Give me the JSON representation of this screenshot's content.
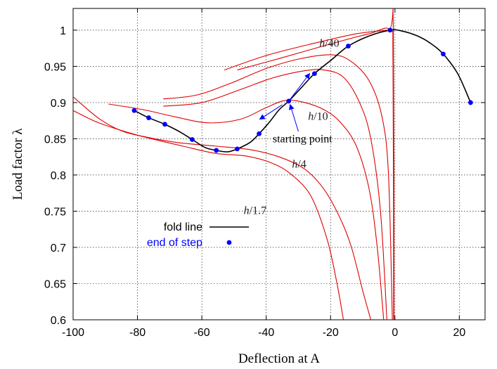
{
  "colors": {
    "fold_line": "#000000",
    "end_of_step": "#0000ff",
    "equilibrium_paths": "#e00000",
    "arrow": "#0000ff",
    "grid": "#000000"
  },
  "chart_data": {
    "type": "line",
    "title": "",
    "xlabel": "Deflection at A",
    "ylabel": "Load factor λ",
    "xlim": [
      -100,
      28
    ],
    "ylim": [
      0.6,
      1.03
    ],
    "xticks": [
      -100,
      -80,
      -60,
      -40,
      -20,
      0,
      20
    ],
    "yticks": [
      0.6,
      0.65,
      0.7,
      0.75,
      0.8,
      0.85,
      0.9,
      0.95,
      1.0
    ],
    "xtick_labels": [
      "-100",
      "-80",
      "-60",
      "-40",
      "-20",
      "0",
      "20"
    ],
    "ytick_labels": [
      "0.6",
      "0.65",
      "0.7",
      "0.75",
      "0.8",
      "0.85",
      "0.9",
      "0.95",
      "1"
    ],
    "grid": true,
    "legend_position": "lower-left",
    "legend": [
      {
        "label": "fold line",
        "style": "line"
      },
      {
        "label": "end of step",
        "style": "point"
      }
    ],
    "series": [
      {
        "name": "fold line",
        "style": "line",
        "points": [
          [
            -81,
            0.889
          ],
          [
            -76.5,
            0.879
          ],
          [
            -71.5,
            0.87
          ],
          [
            -67,
            0.86
          ],
          [
            -63,
            0.849
          ],
          [
            -59,
            0.838
          ],
          [
            -55.5,
            0.834
          ],
          [
            -52,
            0.832
          ],
          [
            -49,
            0.836
          ],
          [
            -45,
            0.845
          ],
          [
            -42.2,
            0.857
          ],
          [
            -39,
            0.873
          ],
          [
            -36,
            0.89
          ],
          [
            -33,
            0.902
          ],
          [
            -29,
            0.921
          ],
          [
            -25,
            0.94
          ],
          [
            -20,
            0.958
          ],
          [
            -14.5,
            0.978
          ],
          [
            -8,
            0.992
          ],
          [
            -1.5,
            1.0
          ],
          [
            2,
            0.999
          ],
          [
            7,
            0.992
          ],
          [
            11,
            0.982
          ],
          [
            15,
            0.967
          ],
          [
            19.5,
            0.94
          ],
          [
            23.5,
            0.9
          ]
        ]
      },
      {
        "name": "end of step",
        "style": "points",
        "points": [
          [
            -81,
            0.889
          ],
          [
            -76.5,
            0.879
          ],
          [
            -71.5,
            0.87
          ],
          [
            -63,
            0.849
          ],
          [
            -55.5,
            0.834
          ],
          [
            -49,
            0.836
          ],
          [
            -42.2,
            0.857
          ],
          [
            -33,
            0.902
          ],
          [
            -25,
            0.94
          ],
          [
            -14.5,
            0.978
          ],
          [
            -1.5,
            1.0
          ],
          [
            15,
            0.967
          ],
          [
            23.5,
            0.9
          ]
        ]
      },
      {
        "name": "h/40 upper",
        "style": "red",
        "points": [
          [
            -53,
            0.945
          ],
          [
            -40,
            0.965
          ],
          [
            -25,
            0.982
          ],
          [
            -12,
            0.995
          ],
          [
            -2,
            1.0
          ],
          [
            -0.5,
            1.0
          ],
          [
            -0.3,
            0.6
          ]
        ]
      },
      {
        "name": "h/40 lower",
        "style": "red",
        "points": [
          [
            -49,
            0.945
          ],
          [
            -35,
            0.962
          ],
          [
            -20,
            0.981
          ],
          [
            -8,
            0.995
          ],
          [
            -1.5,
            1.0
          ],
          [
            -0.6,
            0.95
          ],
          [
            -0.4,
            0.6
          ]
        ]
      },
      {
        "name": "h/10 upper",
        "style": "red",
        "points": [
          [
            -72,
            0.905
          ],
          [
            -62,
            0.91
          ],
          [
            -52,
            0.925
          ],
          [
            -40,
            0.947
          ],
          [
            -30,
            0.96
          ],
          [
            -20,
            0.966
          ],
          [
            -14,
            0.958
          ],
          [
            -8,
            0.93
          ],
          [
            -4,
            0.88
          ],
          [
            -2,
            0.8
          ],
          [
            -0.8,
            0.6
          ]
        ]
      },
      {
        "name": "h/10 lower",
        "style": "red",
        "points": [
          [
            -72,
            0.895
          ],
          [
            -60,
            0.9
          ],
          [
            -48,
            0.918
          ],
          [
            -38,
            0.934
          ],
          [
            -28,
            0.944
          ],
          [
            -22,
            0.945
          ],
          [
            -16,
            0.935
          ],
          [
            -11,
            0.9
          ],
          [
            -7.5,
            0.85
          ],
          [
            -4.5,
            0.75
          ],
          [
            -2.5,
            0.6
          ]
        ]
      },
      {
        "name": "h/4",
        "style": "red",
        "points": [
          [
            -89,
            0.898
          ],
          [
            -78,
            0.89
          ],
          [
            -68,
            0.88
          ],
          [
            -58,
            0.872
          ],
          [
            -48,
            0.877
          ],
          [
            -40,
            0.893
          ],
          [
            -34,
            0.903
          ],
          [
            -28,
            0.9
          ],
          [
            -22,
            0.89
          ],
          [
            -17,
            0.873
          ],
          [
            -12,
            0.84
          ],
          [
            -8,
            0.78
          ],
          [
            -5.5,
            0.7
          ],
          [
            -3.5,
            0.6
          ]
        ]
      },
      {
        "name": "h/1.7",
        "style": "red",
        "points": [
          [
            -100,
            0.908
          ],
          [
            -92,
            0.878
          ],
          [
            -85,
            0.861
          ],
          [
            -78,
            0.853
          ],
          [
            -68,
            0.845
          ],
          [
            -56,
            0.84
          ],
          [
            -45,
            0.835
          ],
          [
            -36,
            0.825
          ],
          [
            -28,
            0.808
          ],
          [
            -22,
            0.78
          ],
          [
            -17,
            0.74
          ],
          [
            -13.5,
            0.7
          ],
          [
            -10,
            0.64
          ],
          [
            -7.5,
            0.6
          ]
        ]
      },
      {
        "name": "h/1.7 outer",
        "style": "red",
        "points": [
          [
            -100,
            0.889
          ],
          [
            -92,
            0.872
          ],
          [
            -80,
            0.855
          ],
          [
            -66,
            0.84
          ],
          [
            -56,
            0.83
          ],
          [
            -46,
            0.826
          ],
          [
            -38,
            0.816
          ],
          [
            -32,
            0.8
          ],
          [
            -26,
            0.77
          ],
          [
            -21,
            0.71
          ],
          [
            -18,
            0.65
          ],
          [
            -16,
            0.6
          ]
        ]
      }
    ],
    "curve_labels": [
      {
        "text": "h/40",
        "x": -23.5,
        "y": 0.977
      },
      {
        "text": "h/10",
        "x": -27,
        "y": 0.876
      },
      {
        "text": "h/4",
        "x": -32,
        "y": 0.81
      },
      {
        "text": "h/1.7",
        "x": -47,
        "y": 0.746
      }
    ],
    "annotation": {
      "text": "starting point",
      "x": -38,
      "y": 0.845,
      "arrow_target": {
        "x": -33,
        "y": 0.902
      },
      "arrow_from": {
        "x": -30,
        "y": 0.86
      },
      "direction_arrows": [
        {
          "from": [
            -33,
            0.902
          ],
          "to": [
            -26.5,
            0.94
          ]
        },
        {
          "from": [
            -35,
            0.897
          ],
          "to": [
            -42,
            0.877
          ]
        }
      ]
    }
  }
}
